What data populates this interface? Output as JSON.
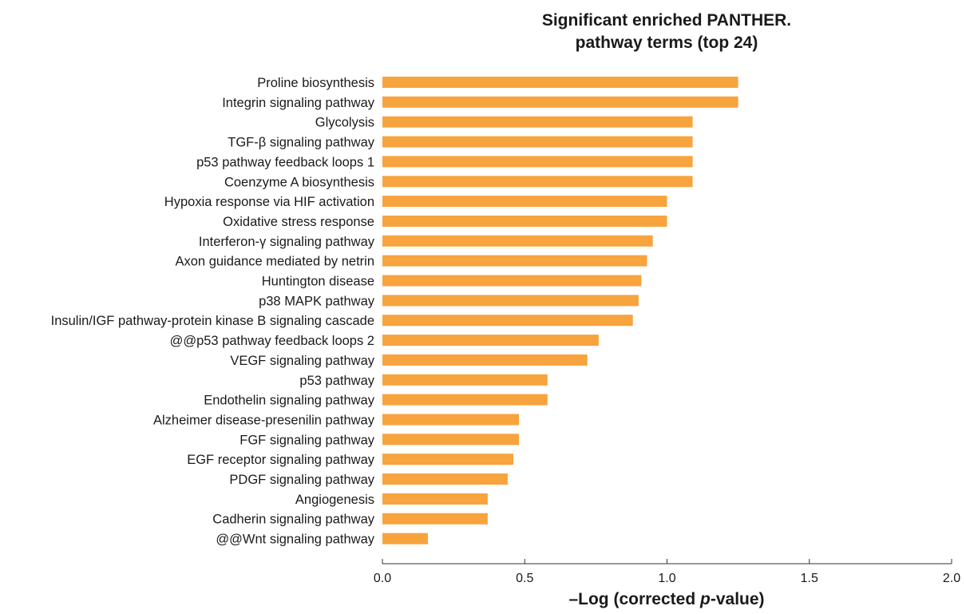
{
  "chart_data": {
    "type": "bar",
    "orientation": "horizontal",
    "title_lines": [
      "Significant enriched PANTHER.",
      "pathway terms (top 24)"
    ],
    "xlabel": {
      "prefix": "–Log (corrected ",
      "italic": "p",
      "suffix": "-value)"
    },
    "ylabel": "",
    "xlim": [
      0,
      2
    ],
    "xticks": [
      "0.0",
      "0.5",
      "1.0",
      "1.5",
      "2.0"
    ],
    "grid": false,
    "bar_color": "#F7A33E",
    "categories": [
      "Proline biosynthesis",
      "Integrin signaling pathway",
      "Glycolysis",
      "TGF-β signaling pathway",
      "p53 pathway feedback loops 1",
      "Coenzyme A biosynthesis",
      "Hypoxia response via HIF activation",
      "Oxidative stress response",
      "Interferon-γ signaling pathway",
      "Axon guidance mediated by netrin",
      "Huntington disease",
      "p38 MAPK pathway",
      "Insulin/IGF pathway-protein kinase B signaling cascade",
      "@@p53 pathway feedback loops 2",
      "VEGF signaling pathway",
      "p53 pathway",
      "Endothelin signaling pathway",
      "Alzheimer disease-presenilin pathway",
      "FGF signaling pathway",
      "EGF receptor signaling pathway",
      "PDGF signaling pathway",
      "Angiogenesis",
      "Cadherin signaling pathway",
      "@@Wnt signaling pathway"
    ],
    "values": [
      1.25,
      1.25,
      1.09,
      1.09,
      1.09,
      1.09,
      1.0,
      1.0,
      0.95,
      0.93,
      0.91,
      0.9,
      0.88,
      0.76,
      0.72,
      0.58,
      0.58,
      0.48,
      0.48,
      0.46,
      0.44,
      0.37,
      0.37,
      0.16
    ]
  }
}
